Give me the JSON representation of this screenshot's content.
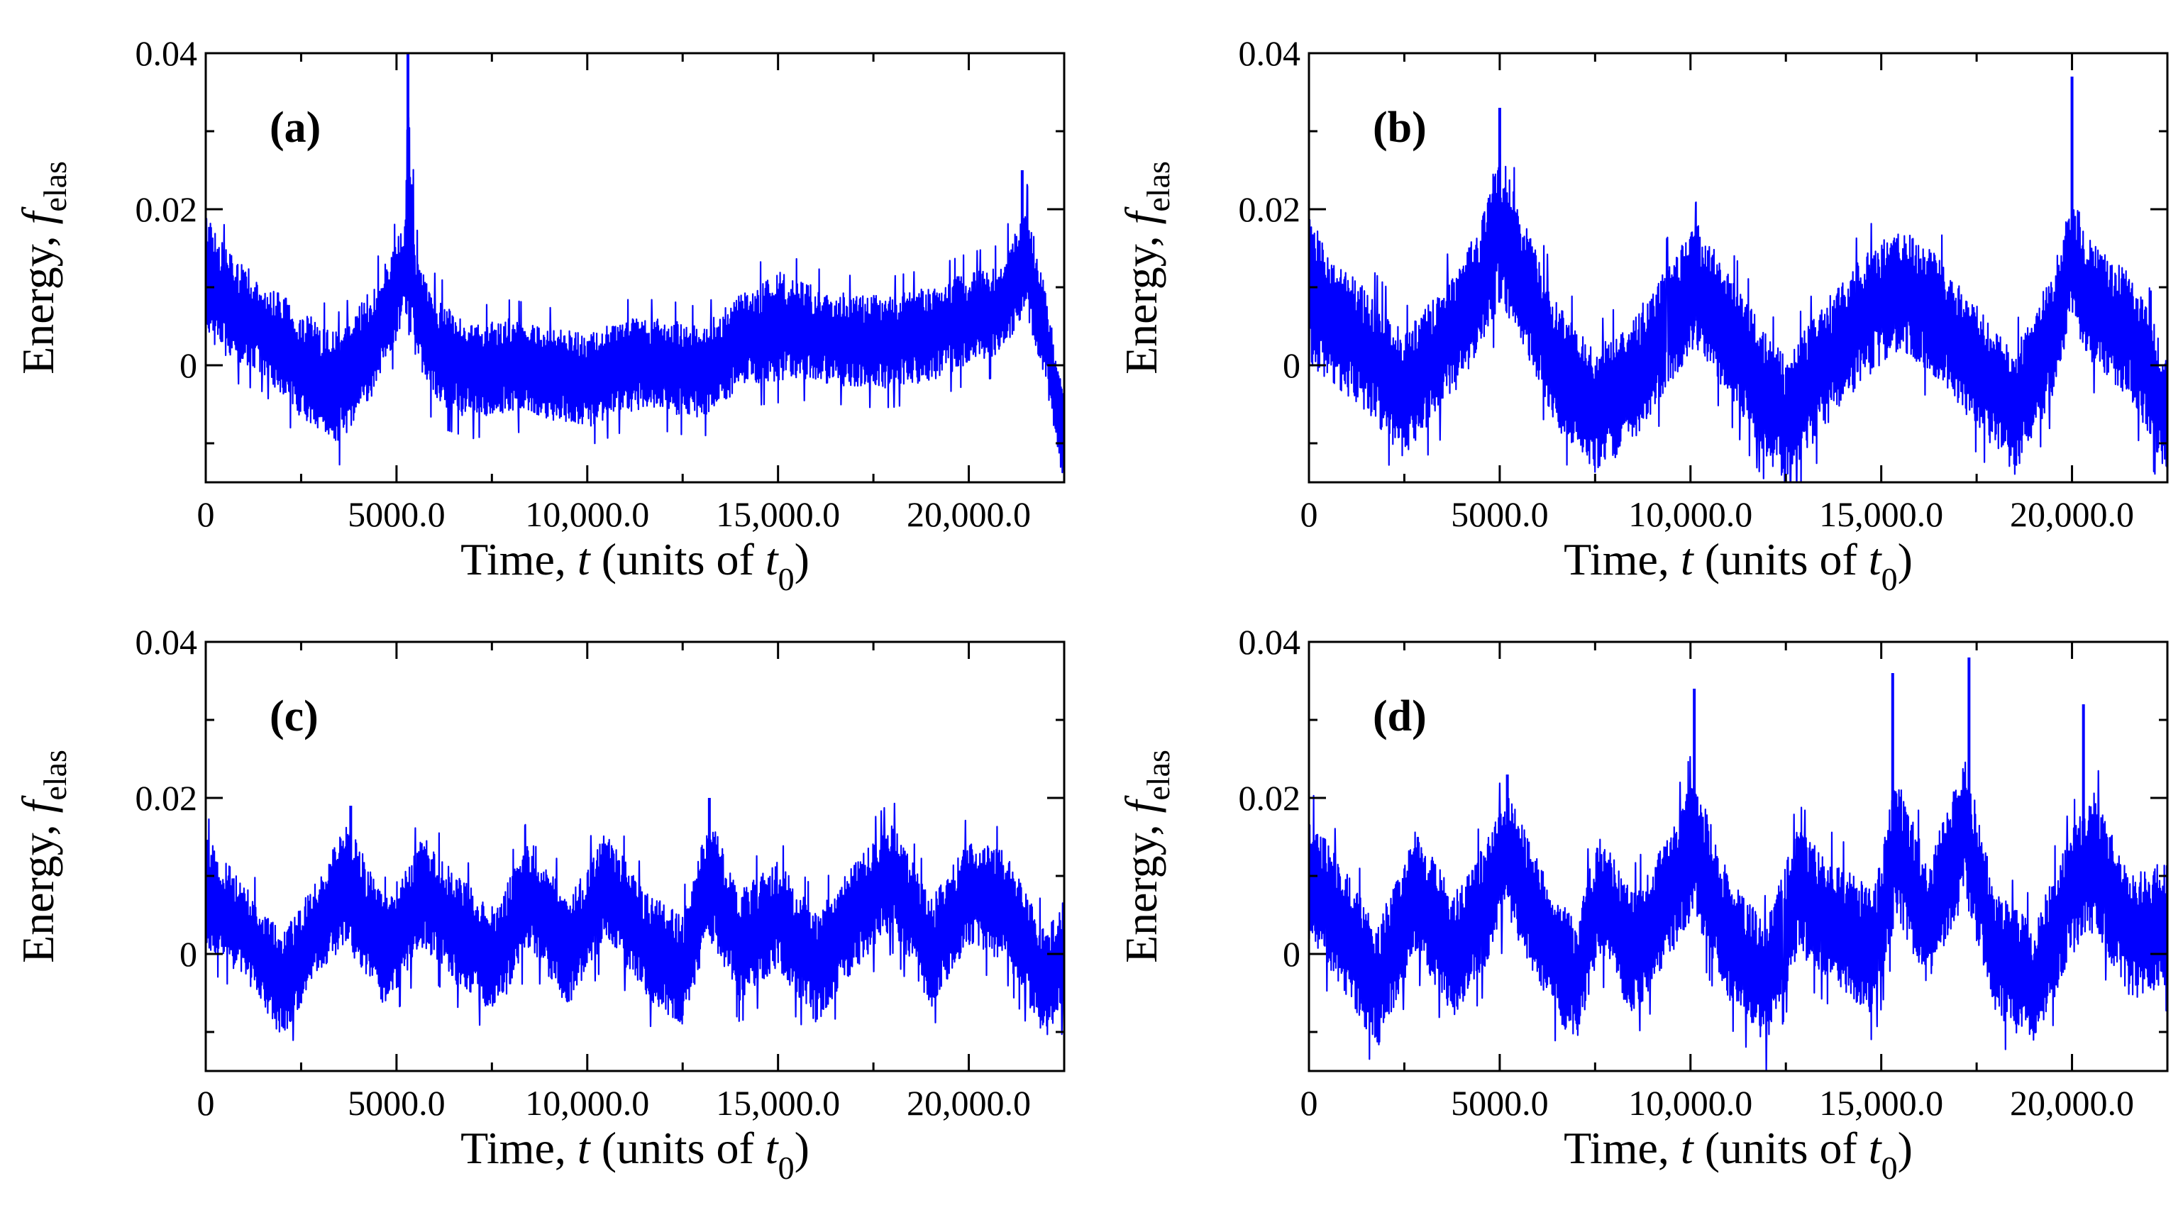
{
  "chart_data": [
    {
      "panel": "(a)",
      "type": "line",
      "xlabel": "Time, t (units of  t0)",
      "ylabel": "Energy, f_elas",
      "xlim": [
        0,
        22500
      ],
      "ylim": [
        -0.015,
        0.04
      ],
      "xticks": [
        0,
        5000,
        10000,
        15000,
        20000
      ],
      "xtick_labels": [
        "0",
        "5000.0",
        "10,000.0",
        "15,000.0",
        "20,000.0"
      ],
      "yticks": [
        0,
        0.02,
        0.04
      ],
      "ytick_labels": [
        "0",
        "0.02",
        "0.04"
      ],
      "series": [
        {
          "color": "#0000ff",
          "envelope_t": [
            0,
            500,
            1500,
            2500,
            3500,
            4500,
            5200,
            5300,
            5500,
            6000,
            7000,
            8000,
            9000,
            10000,
            11000,
            12000,
            13000,
            14000,
            15000,
            16000,
            17000,
            18000,
            19000,
            20000,
            20800,
            21500,
            22000,
            22500
          ],
          "envelope_mean": [
            0.012,
            0.008,
            0.005,
            0.0,
            -0.003,
            0.004,
            0.012,
            0.02,
            0.008,
            0.002,
            -0.001,
            0.0,
            -0.001,
            -0.002,
            0.0,
            0.0,
            -0.001,
            0.003,
            0.005,
            0.004,
            0.003,
            0.003,
            0.004,
            0.006,
            0.007,
            0.014,
            0.004,
            -0.01
          ],
          "envelope_amp": [
            0.008,
            0.007,
            0.006,
            0.007,
            0.007,
            0.007,
            0.006,
            0.016,
            0.007,
            0.007,
            0.006,
            0.006,
            0.006,
            0.006,
            0.006,
            0.006,
            0.006,
            0.006,
            0.007,
            0.006,
            0.006,
            0.006,
            0.006,
            0.006,
            0.006,
            0.007,
            0.006,
            0.006
          ],
          "spikes": [
            [
              5300,
              0.04
            ],
            [
              21400,
              0.025
            ]
          ]
        }
      ]
    },
    {
      "panel": "(b)",
      "type": "line",
      "xlabel": "Time, t (units of  t0)",
      "ylabel": "Energy, f_elas",
      "xlim": [
        0,
        22500
      ],
      "ylim": [
        -0.015,
        0.04
      ],
      "xticks": [
        0,
        5000,
        10000,
        15000,
        20000
      ],
      "xtick_labels": [
        "0",
        "5000.0",
        "10,000.0",
        "15,000.0",
        "20,000.0"
      ],
      "yticks": [
        0,
        0.02,
        0.04
      ],
      "ytick_labels": [
        "0",
        "0.02",
        "0.04"
      ],
      "series": [
        {
          "color": "#0000ff",
          "envelope_t": [
            0,
            500,
            1500,
            2500,
            3500,
            4500,
            5000,
            5500,
            6500,
            7500,
            8500,
            9500,
            10200,
            11000,
            12000,
            12500,
            13500,
            14500,
            15500,
            16500,
            17500,
            18500,
            19500,
            20000,
            20500,
            21500,
            22500
          ],
          "envelope_mean": [
            0.01,
            0.006,
            0.002,
            -0.004,
            0.002,
            0.01,
            0.018,
            0.012,
            0.0,
            -0.006,
            -0.002,
            0.006,
            0.01,
            0.004,
            -0.004,
            -0.007,
            0.0,
            0.006,
            0.01,
            0.006,
            0.0,
            -0.006,
            0.004,
            0.014,
            0.008,
            0.004,
            -0.006
          ],
          "envelope_amp": [
            0.01,
            0.008,
            0.008,
            0.008,
            0.008,
            0.008,
            0.01,
            0.008,
            0.008,
            0.008,
            0.008,
            0.008,
            0.008,
            0.008,
            0.008,
            0.008,
            0.008,
            0.008,
            0.008,
            0.008,
            0.008,
            0.008,
            0.008,
            0.008,
            0.008,
            0.008,
            0.008
          ],
          "spikes": [
            [
              5000,
              0.033
            ],
            [
              20000,
              0.037
            ]
          ]
        }
      ]
    },
    {
      "panel": "(c)",
      "type": "line",
      "xlabel": "Time, t (units of  t0)",
      "ylabel": "Energy, f_elas",
      "xlim": [
        0,
        22500
      ],
      "ylim": [
        -0.015,
        0.04
      ],
      "xticks": [
        0,
        5000,
        10000,
        15000,
        20000
      ],
      "xtick_labels": [
        "0",
        "5000.0",
        "10,000.0",
        "15,000.0",
        "20,000.0"
      ],
      "yticks": [
        0,
        0.02,
        0.04
      ],
      "ytick_labels": [
        "0",
        "0.02",
        "0.04"
      ],
      "series": [
        {
          "color": "#0000ff",
          "envelope_t": [
            0,
            1000,
            2000,
            3000,
            3700,
            4700,
            5700,
            6600,
            7600,
            8500,
            9500,
            10500,
            11500,
            12500,
            13200,
            14000,
            15000,
            16000,
            17000,
            18000,
            19000,
            20000,
            21000,
            22000,
            22500
          ],
          "envelope_mean": [
            0.008,
            0.003,
            -0.004,
            0.004,
            0.009,
            0.0,
            0.008,
            0.003,
            -0.001,
            0.008,
            0.0,
            0.009,
            0.001,
            -0.002,
            0.01,
            0.001,
            0.005,
            -0.002,
            0.005,
            0.01,
            0.0,
            0.008,
            0.006,
            -0.004,
            0.0
          ],
          "envelope_amp": [
            0.007,
            0.006,
            0.007,
            0.006,
            0.008,
            0.007,
            0.007,
            0.007,
            0.007,
            0.007,
            0.007,
            0.007,
            0.007,
            0.007,
            0.008,
            0.007,
            0.007,
            0.007,
            0.007,
            0.007,
            0.007,
            0.007,
            0.007,
            0.007,
            0.007
          ],
          "spikes": [
            [
              13200,
              0.02
            ],
            [
              3800,
              0.019
            ]
          ]
        }
      ]
    },
    {
      "panel": "(d)",
      "type": "line",
      "xlabel": "Time, t (units of  t0)",
      "ylabel": "Energy, f_elas",
      "xlim": [
        0,
        22500
      ],
      "ylim": [
        -0.015,
        0.04
      ],
      "xticks": [
        0,
        5000,
        10000,
        15000,
        20000
      ],
      "xtick_labels": [
        "0",
        "5000.0",
        "10,000.0",
        "15,000.0",
        "20,000.0"
      ],
      "yticks": [
        0,
        0.02,
        0.04
      ],
      "ytick_labels": [
        "0",
        "0.02",
        "0.04"
      ],
      "series": [
        {
          "color": "#0000ff",
          "envelope_t": [
            0,
            800,
            1800,
            2800,
            3800,
            4600,
            5200,
            6200,
            7000,
            7600,
            8500,
            9500,
            10100,
            11000,
            12000,
            12800,
            13800,
            14800,
            15400,
            16200,
            17200,
            18000,
            19000,
            20000,
            20600,
            21500,
            22500
          ],
          "envelope_mean": [
            0.01,
            0.004,
            -0.004,
            0.008,
            0.0,
            0.006,
            0.013,
            0.002,
            -0.004,
            0.008,
            0.0,
            0.008,
            0.014,
            0.002,
            -0.004,
            0.008,
            0.004,
            0.0,
            0.014,
            0.004,
            0.016,
            0.0,
            -0.004,
            0.008,
            0.012,
            0.002,
            0.004
          ],
          "envelope_amp": [
            0.008,
            0.008,
            0.008,
            0.008,
            0.008,
            0.008,
            0.008,
            0.008,
            0.008,
            0.008,
            0.008,
            0.008,
            0.009,
            0.008,
            0.008,
            0.008,
            0.008,
            0.008,
            0.009,
            0.008,
            0.009,
            0.008,
            0.008,
            0.008,
            0.009,
            0.008,
            0.008
          ],
          "spikes": [
            [
              10100,
              0.034
            ],
            [
              15300,
              0.036
            ],
            [
              17300,
              0.038
            ],
            [
              20300,
              0.032
            ],
            [
              5200,
              0.023
            ]
          ]
        }
      ]
    }
  ]
}
